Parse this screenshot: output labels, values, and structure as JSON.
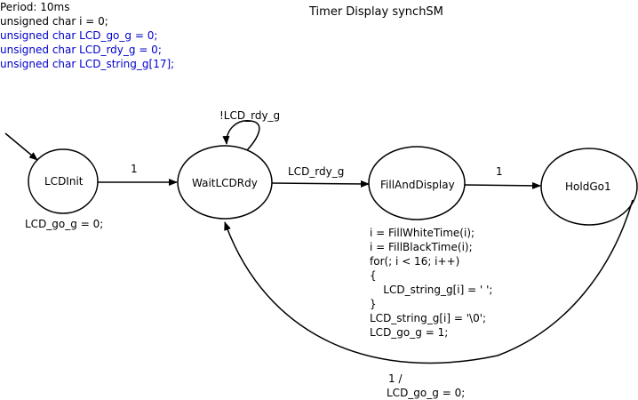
{
  "header": {
    "title": "Timer Display synchSM",
    "period": "Period: 10ms",
    "declarations_local": [
      "unsigned char i = 0;"
    ],
    "declarations_global": [
      "unsigned char LCD_go_g = 0;",
      "unsigned char LCD_rdy_g = 0;",
      "unsigned char LCD_string_g[17];"
    ]
  },
  "states": {
    "lcdinit": "LCDInit",
    "waitlcdrdy": "WaitLCDRdy",
    "fillanddisplay": "FillAndDisplay",
    "holdgo1": "HoldGo1"
  },
  "transitions": {
    "init_to_wait": "1",
    "wait_self": "!LCD_rdy_g",
    "wait_to_fill": "LCD_rdy_g",
    "fill_to_hold": "1",
    "hold_to_wait_condition": "1 /",
    "hold_to_wait_action": "LCD_go_g = 0;"
  },
  "actions": {
    "lcdinit": "LCD_go_g = 0;",
    "fillanddisplay": [
      "i = FillWhiteTime(i);",
      "i = FillBlackTime(i);",
      "for(; i < 16; i++)",
      "{",
      "    LCD_string_g[i] = ' ';",
      "}",
      "LCD_string_g[i] = '\\0';",
      "LCD_go_g = 1;"
    ]
  },
  "colors": {
    "global_declaration": "#0000cc",
    "stroke": "#000000"
  }
}
